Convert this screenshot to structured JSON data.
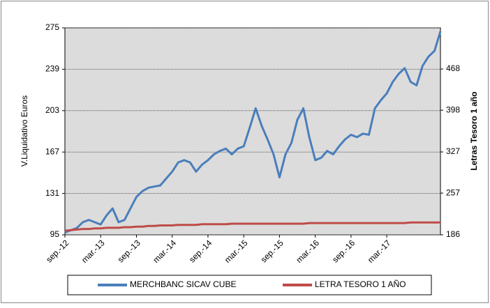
{
  "chart_data": {
    "type": "line",
    "y_label": "V.Liquidativo Euros",
    "y2_label": "Letras Tesoro 1 año",
    "categories": [
      "sep.-12",
      null,
      null,
      null,
      null,
      null,
      "mar.-13",
      null,
      null,
      null,
      null,
      null,
      "sep.-13",
      null,
      null,
      null,
      null,
      null,
      "mar.-14",
      null,
      null,
      null,
      null,
      null,
      "sep.-14",
      null,
      null,
      null,
      null,
      null,
      "mar.-15",
      null,
      null,
      null,
      null,
      null,
      "sep.-15",
      null,
      null,
      null,
      null,
      null,
      "mar.-16",
      null,
      null,
      null,
      null,
      null,
      "sep.-16",
      null,
      null,
      null,
      null,
      null,
      "mar.-17",
      null,
      null,
      null,
      null,
      null,
      null,
      null,
      null,
      null
    ],
    "ylim": [
      95,
      275
    ],
    "yticks": [
      95,
      131,
      167,
      203,
      239,
      275
    ],
    "y2lim": [
      186,
      538
    ],
    "y2ticks": [
      186,
      257,
      327,
      398,
      468
    ],
    "grid": true,
    "series": [
      {
        "name": "MERCHBANC SICAV CUBE",
        "color": "#4a7ebb",
        "values": [
          97,
          99,
          101,
          106,
          108,
          106,
          104,
          112,
          118,
          106,
          108,
          118,
          128,
          133,
          136,
          137,
          138,
          144,
          150,
          158,
          160,
          158,
          150,
          156,
          160,
          165,
          168,
          170,
          165,
          170,
          172,
          188,
          205,
          190,
          178,
          165,
          145,
          165,
          175,
          195,
          205,
          180,
          160,
          162,
          168,
          165,
          172,
          178,
          182,
          180,
          183,
          182,
          205,
          212,
          218,
          228,
          235,
          240,
          228,
          225,
          242,
          250,
          255,
          272
        ]
      },
      {
        "name": "LETRA TESORO 1 AÑO",
        "color": "#be4b48",
        "axis": "y2",
        "values": [
          193,
          194,
          195,
          196,
          196,
          197,
          197,
          198,
          198,
          198,
          199,
          199,
          200,
          200,
          201,
          201,
          202,
          202,
          202,
          203,
          203,
          203,
          203,
          204,
          204,
          204,
          204,
          204,
          205,
          205,
          205,
          205,
          205,
          205,
          205,
          205,
          205,
          205,
          205,
          205,
          205,
          206,
          206,
          206,
          206,
          206,
          206,
          206,
          206,
          206,
          206,
          206,
          206,
          206,
          206,
          206,
          206,
          206,
          207,
          207,
          207,
          207,
          207,
          207
        ]
      }
    ]
  }
}
